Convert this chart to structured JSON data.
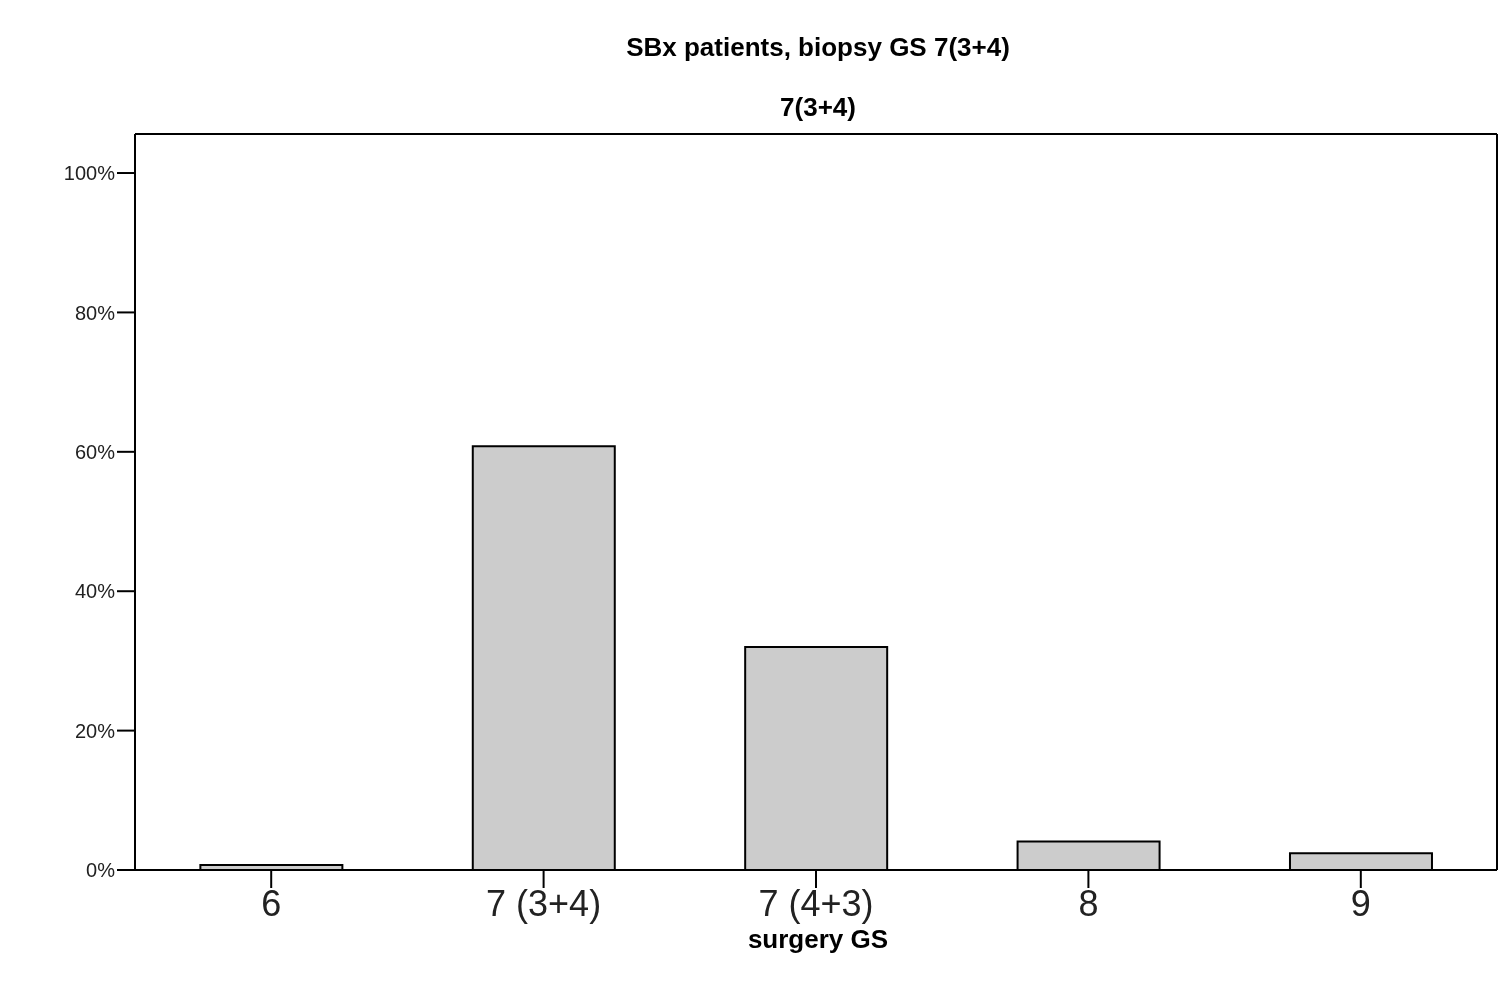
{
  "chart_data": {
    "type": "bar",
    "title": "SBx patients, biopsy GS 7(3+4)",
    "subtitle": "7(3+4)",
    "xlabel": "surgery GS",
    "categories": [
      "6",
      "7 (3+4)",
      "7 (4+3)",
      "8",
      "9"
    ],
    "values": [
      0.7,
      60.8,
      32.0,
      4.1,
      2.4
    ],
    "color": "#cccccc",
    "ylim": [
      0,
      105.6
    ],
    "yticks": [
      {
        "value": 0,
        "label": "0%"
      },
      {
        "value": 20,
        "label": "20%"
      },
      {
        "value": 40,
        "label": "40%"
      },
      {
        "value": 60,
        "label": "60%"
      },
      {
        "value": 80,
        "label": "80%"
      },
      {
        "value": 100,
        "label": "100%"
      }
    ],
    "grid": false,
    "legend": false
  }
}
